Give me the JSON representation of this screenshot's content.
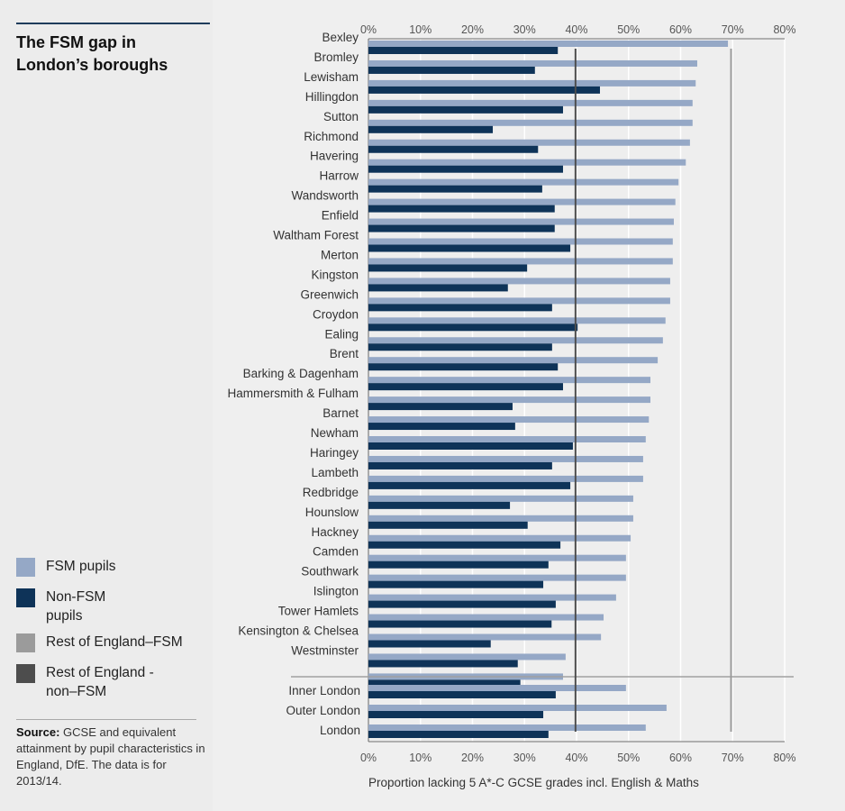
{
  "title": "The FSM gap in London’s boroughs",
  "legend": [
    {
      "label": "FSM pupils",
      "color": "#95a8c6"
    },
    {
      "label": "Non-FSM pupils",
      "color": "#0e3358"
    },
    {
      "label": "Rest of England–FSM",
      "color": "#9b9b9b"
    },
    {
      "label": "Rest of England -non–FSM",
      "color": "#4d4d4d"
    }
  ],
  "source": {
    "label": "Source:",
    "text": "GCSE and equivalent attainment by pupil characteristics in England, DfE. The data is for 2013/14."
  },
  "chart_data": {
    "type": "bar",
    "orientation": "horizontal",
    "title": "The FSM gap in London’s boroughs",
    "xlabel": "Proportion lacking 5 A*-C GCSE grades incl. English & Maths",
    "ylabel": "",
    "xlim": [
      0,
      80
    ],
    "xticks": [
      "0%",
      "10%",
      "20%",
      "30%",
      "40%",
      "50%",
      "60%",
      "70%",
      "80%"
    ],
    "grid": true,
    "legend_position": "left-bottom",
    "categories": [
      "Bexley",
      "Bromley",
      "Lewisham",
      "Hillingdon",
      "Sutton",
      "Richmond",
      "Havering",
      "Harrow",
      "Wandsworth",
      "Enfield",
      "Waltham Forest",
      "Merton",
      "Kingston",
      "Greenwich",
      "Croydon",
      "Ealing",
      "Brent",
      "Barking & Dagenham",
      "Hammersmith & Fulham",
      "Barnet",
      "Newham",
      "Haringey",
      "Lambeth",
      "Redbridge",
      "Hounslow",
      "Hackney",
      "Camden",
      "Southwark",
      "Islington",
      "Tower Hamlets",
      "Kensington & Chelsea",
      "Westminster",
      ""
    ],
    "series": [
      {
        "name": "FSM pupils",
        "color": "#95a8c6",
        "values": [
          69.1,
          63.2,
          62.9,
          62.3,
          62.3,
          61.8,
          61.0,
          59.6,
          59.0,
          58.7,
          58.5,
          58.5,
          58.0,
          58.0,
          57.1,
          56.6,
          55.6,
          54.2,
          54.2,
          53.9,
          53.3,
          52.8,
          52.8,
          50.9,
          50.9,
          50.4,
          49.5,
          49.5,
          47.6,
          45.2,
          44.7,
          37.9,
          37.4
        ]
      },
      {
        "name": "Non-FSM pupils",
        "color": "#0e3358",
        "values": [
          36.4,
          32.0,
          44.5,
          37.4,
          23.9,
          32.6,
          37.4,
          33.4,
          35.8,
          35.8,
          38.8,
          30.5,
          26.8,
          35.3,
          40.2,
          35.3,
          36.4,
          37.4,
          27.7,
          28.2,
          39.3,
          35.3,
          38.8,
          27.2,
          30.6,
          36.9,
          34.6,
          33.6,
          36.0,
          35.2,
          23.5,
          28.7,
          29.2
        ]
      }
    ],
    "summary_categories": [
      "Inner London",
      "Outer London",
      "London"
    ],
    "summary_series": [
      {
        "name": "FSM pupils",
        "values": [
          49.5,
          57.3,
          53.3
        ]
      },
      {
        "name": "Non-FSM pupils",
        "values": [
          36.0,
          33.6,
          34.6
        ]
      }
    ],
    "reference_lines": [
      {
        "name": "Rest of England–FSM",
        "value": 69.7,
        "color": "#9b9b9b"
      },
      {
        "name": "Rest of England -non–FSM",
        "value": 39.8,
        "color": "#4d4d4d"
      }
    ]
  }
}
